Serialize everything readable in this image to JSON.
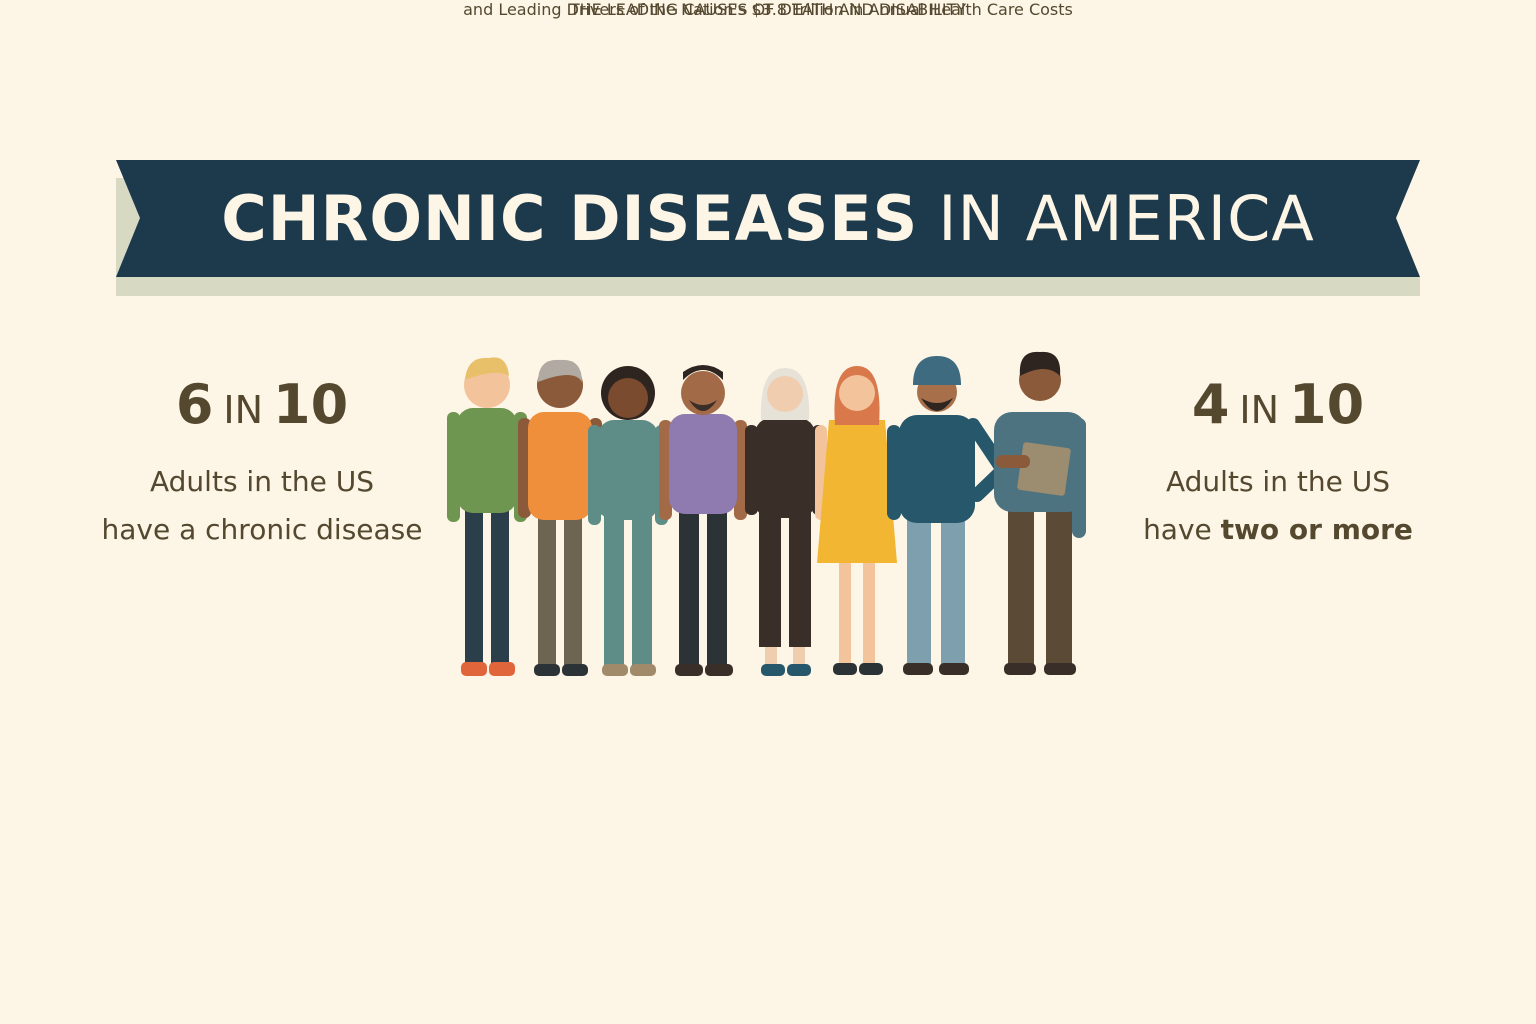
{
  "banner": {
    "title_bold": "CHRONIC DISEASES",
    "title_regular": "IN AMERICA"
  },
  "stat_left": {
    "number": "6",
    "connector": "IN",
    "total": "10",
    "line1": "Adults in the US",
    "line2": "have a chronic disease"
  },
  "stat_right": {
    "number": "4",
    "connector": "IN",
    "total": "10",
    "line1": "Adults in the US",
    "line2_regular": "have",
    "line2_bold": "two or more"
  },
  "footer": {
    "heading": "THE LEADING CAUSES OF DEATH AND DISABILITY",
    "subline": "and Leading Drivers of the Nation's $3.8 Trillion in Annual Health Care Costs"
  }
}
